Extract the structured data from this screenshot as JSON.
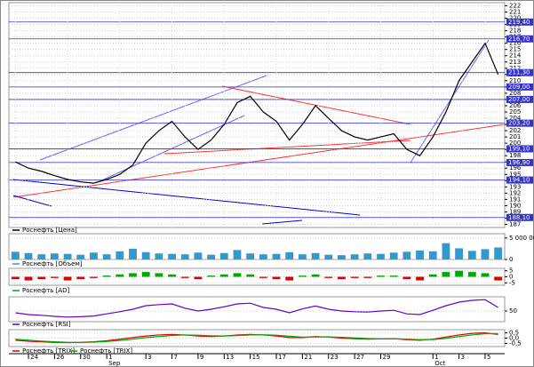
{
  "chart_data": [
    {
      "type": "line",
      "grid": true,
      "ylim": [
        186.5,
        222.5
      ],
      "yticks": [
        187,
        188,
        189,
        190,
        191,
        192,
        193,
        194,
        195,
        196,
        197,
        198,
        199,
        200,
        201,
        202,
        203,
        204,
        205,
        206,
        207,
        208,
        209,
        210,
        211,
        212,
        213,
        214,
        215,
        216,
        217,
        218,
        219,
        220,
        221,
        222
      ],
      "series": [
        {
          "name": "Роснефть [Цена]",
          "color": "#000000",
          "values": [
            197,
            196,
            195.5,
            194.8,
            194.2,
            193.8,
            193.6,
            194.2,
            195,
            196.5,
            200,
            202,
            203.5,
            201,
            199,
            200.5,
            203,
            206.5,
            207.5,
            205,
            203.5,
            200.5,
            203,
            206,
            204,
            202,
            201,
            200.5,
            201,
            201.5,
            199,
            198,
            201,
            205,
            210,
            213,
            216,
            211
          ]
        }
      ],
      "price_labels": [
        {
          "value": 219.4,
          "label": "219,40"
        },
        {
          "value": 216.7,
          "label": "216,70"
        },
        {
          "value": 211.3,
          "label": "211,30"
        },
        {
          "value": 209.0,
          "label": "209,00"
        },
        {
          "value": 207.0,
          "label": "207,00"
        },
        {
          "value": 203.2,
          "label": "203,20"
        },
        {
          "value": 199.1,
          "label": "199,10"
        },
        {
          "value": 196.9,
          "label": "196,90"
        },
        {
          "value": 194.1,
          "label": "194,10"
        },
        {
          "value": 188.1,
          "label": "188,10"
        }
      ]
    },
    {
      "type": "bar",
      "ylim": [
        0,
        6000000
      ],
      "yticks": [
        0,
        {
          "value": 5000000,
          "label": "5 000 000"
        }
      ],
      "series": [
        {
          "name": "Роснефть [Объем]",
          "color": "#3399cc",
          "values": [
            1800000,
            1500000,
            1200000,
            1400000,
            1300000,
            1100000,
            1600000,
            1200000,
            1900000,
            2500000,
            1700000,
            1400000,
            1300000,
            1200000,
            1600000,
            1100000,
            1500000,
            2200000,
            1400000,
            1200000,
            1300000,
            1700000,
            1200000,
            1500000,
            1100000,
            1000000,
            1200000,
            1400000,
            1300000,
            1600000,
            1800000,
            2100000,
            1900000,
            3800000,
            2600000,
            2000000,
            2400000,
            2800000
          ]
        }
      ]
    },
    {
      "type": "bar",
      "ylim": [
        -7,
        7
      ],
      "yticks": [
        -5,
        0,
        5
      ],
      "series": [
        {
          "name": "Роснефть [AD]",
          "color": "#00aa00",
          "negative_color": "#dd0000",
          "values": [
            -2,
            -3,
            -2,
            -1,
            -3,
            -2,
            -1,
            1,
            2,
            3,
            4,
            3,
            2,
            -1,
            -2,
            1,
            2,
            3,
            2,
            -1,
            -2,
            -3,
            1,
            2,
            -1,
            -2,
            -1,
            -1,
            1,
            1,
            -2,
            -3,
            2,
            4,
            5,
            4,
            3,
            -3
          ]
        }
      ]
    },
    {
      "type": "line",
      "ylim": [
        20,
        90
      ],
      "yticks": [
        50
      ],
      "series": [
        {
          "name": "Роснефть [RSI]",
          "color": "#6600cc",
          "values": [
            45,
            40,
            38,
            35,
            33,
            34,
            36,
            42,
            48,
            55,
            65,
            68,
            70,
            58,
            50,
            55,
            62,
            70,
            72,
            60,
            55,
            45,
            56,
            64,
            55,
            50,
            48,
            47,
            50,
            52,
            42,
            40,
            52,
            65,
            75,
            80,
            82,
            60
          ]
        }
      ]
    },
    {
      "type": "line",
      "ylim": [
        -0.8,
        0.8
      ],
      "yticks": [
        {
          "value": 0.5,
          "label": "0,5"
        },
        {
          "value": 0,
          "label": "0,0"
        },
        {
          "value": -0.5,
          "label": "-0,5"
        }
      ],
      "categories": [
        null,
        "24",
        null,
        "26",
        null,
        "30",
        null,
        "1",
        null,
        null,
        "3",
        null,
        "7",
        null,
        "9",
        null,
        "13",
        null,
        "15",
        null,
        "17",
        null,
        "21",
        null,
        "23",
        null,
        "27",
        null,
        "29",
        null,
        null,
        null,
        "1",
        null,
        "3",
        null,
        "5",
        null
      ],
      "months": [
        null,
        null,
        null,
        null,
        null,
        null,
        null,
        "Sep",
        null,
        null,
        null,
        null,
        null,
        null,
        null,
        null,
        null,
        null,
        null,
        null,
        null,
        null,
        null,
        null,
        null,
        null,
        null,
        null,
        null,
        null,
        null,
        null,
        "Oct",
        null,
        null,
        null,
        null,
        null
      ],
      "series": [
        {
          "name": "Роснефть [TRIX]",
          "color": "#dd0000",
          "values": [
            -0.2,
            -0.3,
            -0.35,
            -0.4,
            -0.42,
            -0.4,
            -0.35,
            -0.25,
            -0.1,
            0.05,
            0.2,
            0.3,
            0.35,
            0.3,
            0.2,
            0.15,
            0.2,
            0.3,
            0.35,
            0.3,
            0.2,
            0.05,
            0.05,
            0.15,
            0.1,
            0,
            -0.05,
            -0.1,
            -0.08,
            -0.05,
            -0.15,
            -0.2,
            -0.1,
            0.1,
            0.3,
            0.45,
            0.5,
            0.35
          ]
        },
        {
          "name": "Роснефть [TRIX]",
          "color": "#00aa00",
          "values": [
            -0.1,
            -0.2,
            -0.28,
            -0.35,
            -0.4,
            -0.41,
            -0.38,
            -0.32,
            -0.22,
            -0.1,
            0.05,
            0.15,
            0.25,
            0.3,
            0.28,
            0.22,
            0.2,
            0.24,
            0.3,
            0.32,
            0.28,
            0.18,
            0.1,
            0.1,
            0.12,
            0.08,
            0.02,
            -0.04,
            -0.07,
            -0.06,
            -0.1,
            -0.15,
            -0.14,
            -0.02,
            0.15,
            0.3,
            0.42,
            0.42
          ]
        }
      ]
    }
  ]
}
